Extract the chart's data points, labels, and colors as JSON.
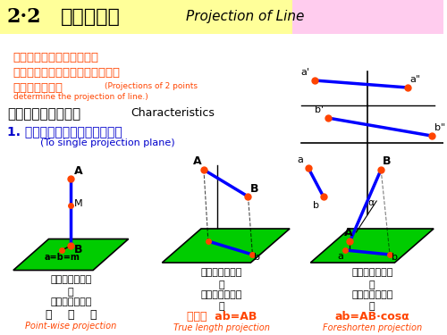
{
  "title_number": "2·2",
  "title_cn": "直线的投影",
  "title_en": "Projection of Line",
  "bg_top_color": "#ffccff",
  "bg_title_color": "#ffff99",
  "intro_cn_line1": "两点确定一条直线，将两点",
  "intro_cn_line2": "的同名投影用直线连接，就得到直",
  "intro_cn_line3": "线的同名投影。",
  "intro_en_line1": "(Projections of 2 points",
  "intro_en_line2": "determine the projection of line.)",
  "section_title_cn": "一、直线的投影特性",
  "section_title_en": "Characteristics",
  "sub_title_cn": "1. 直线对一个投影面的投影特性",
  "sub_title_en": "(To single projection plane)",
  "diagram1_label1": "直线垂直于投影",
  "diagram1_label2": "面",
  "diagram1_label3": "投影重合为一点",
  "diagram1_label4": "积    聚    性",
  "diagram1_label5": "Point-wise projection",
  "diagram2_label1": "直线平行于投影",
  "diagram2_label2": "面",
  "diagram2_label3": "投影反映线段实",
  "diagram2_label4": "长",
  "diagram2_label5": "存真性  ab=AB",
  "diagram2_label6": "True length projection",
  "diagram3_label1": "直线倾斜于投影",
  "diagram3_label2": "面",
  "diagram3_label3": "投影比空间线段",
  "diagram3_label4": "短",
  "diagram3_label5": "ab=AB·cosα",
  "diagram3_label6": "Foreshorten projection",
  "red_color": "#ff0000",
  "orange_red": "#ff4400",
  "blue_color": "#0000ff",
  "dark_blue": "#000080",
  "green_color": "#00cc00",
  "black_color": "#000000",
  "yellow_color": "#ffff00",
  "dot_color": "#ff4400"
}
